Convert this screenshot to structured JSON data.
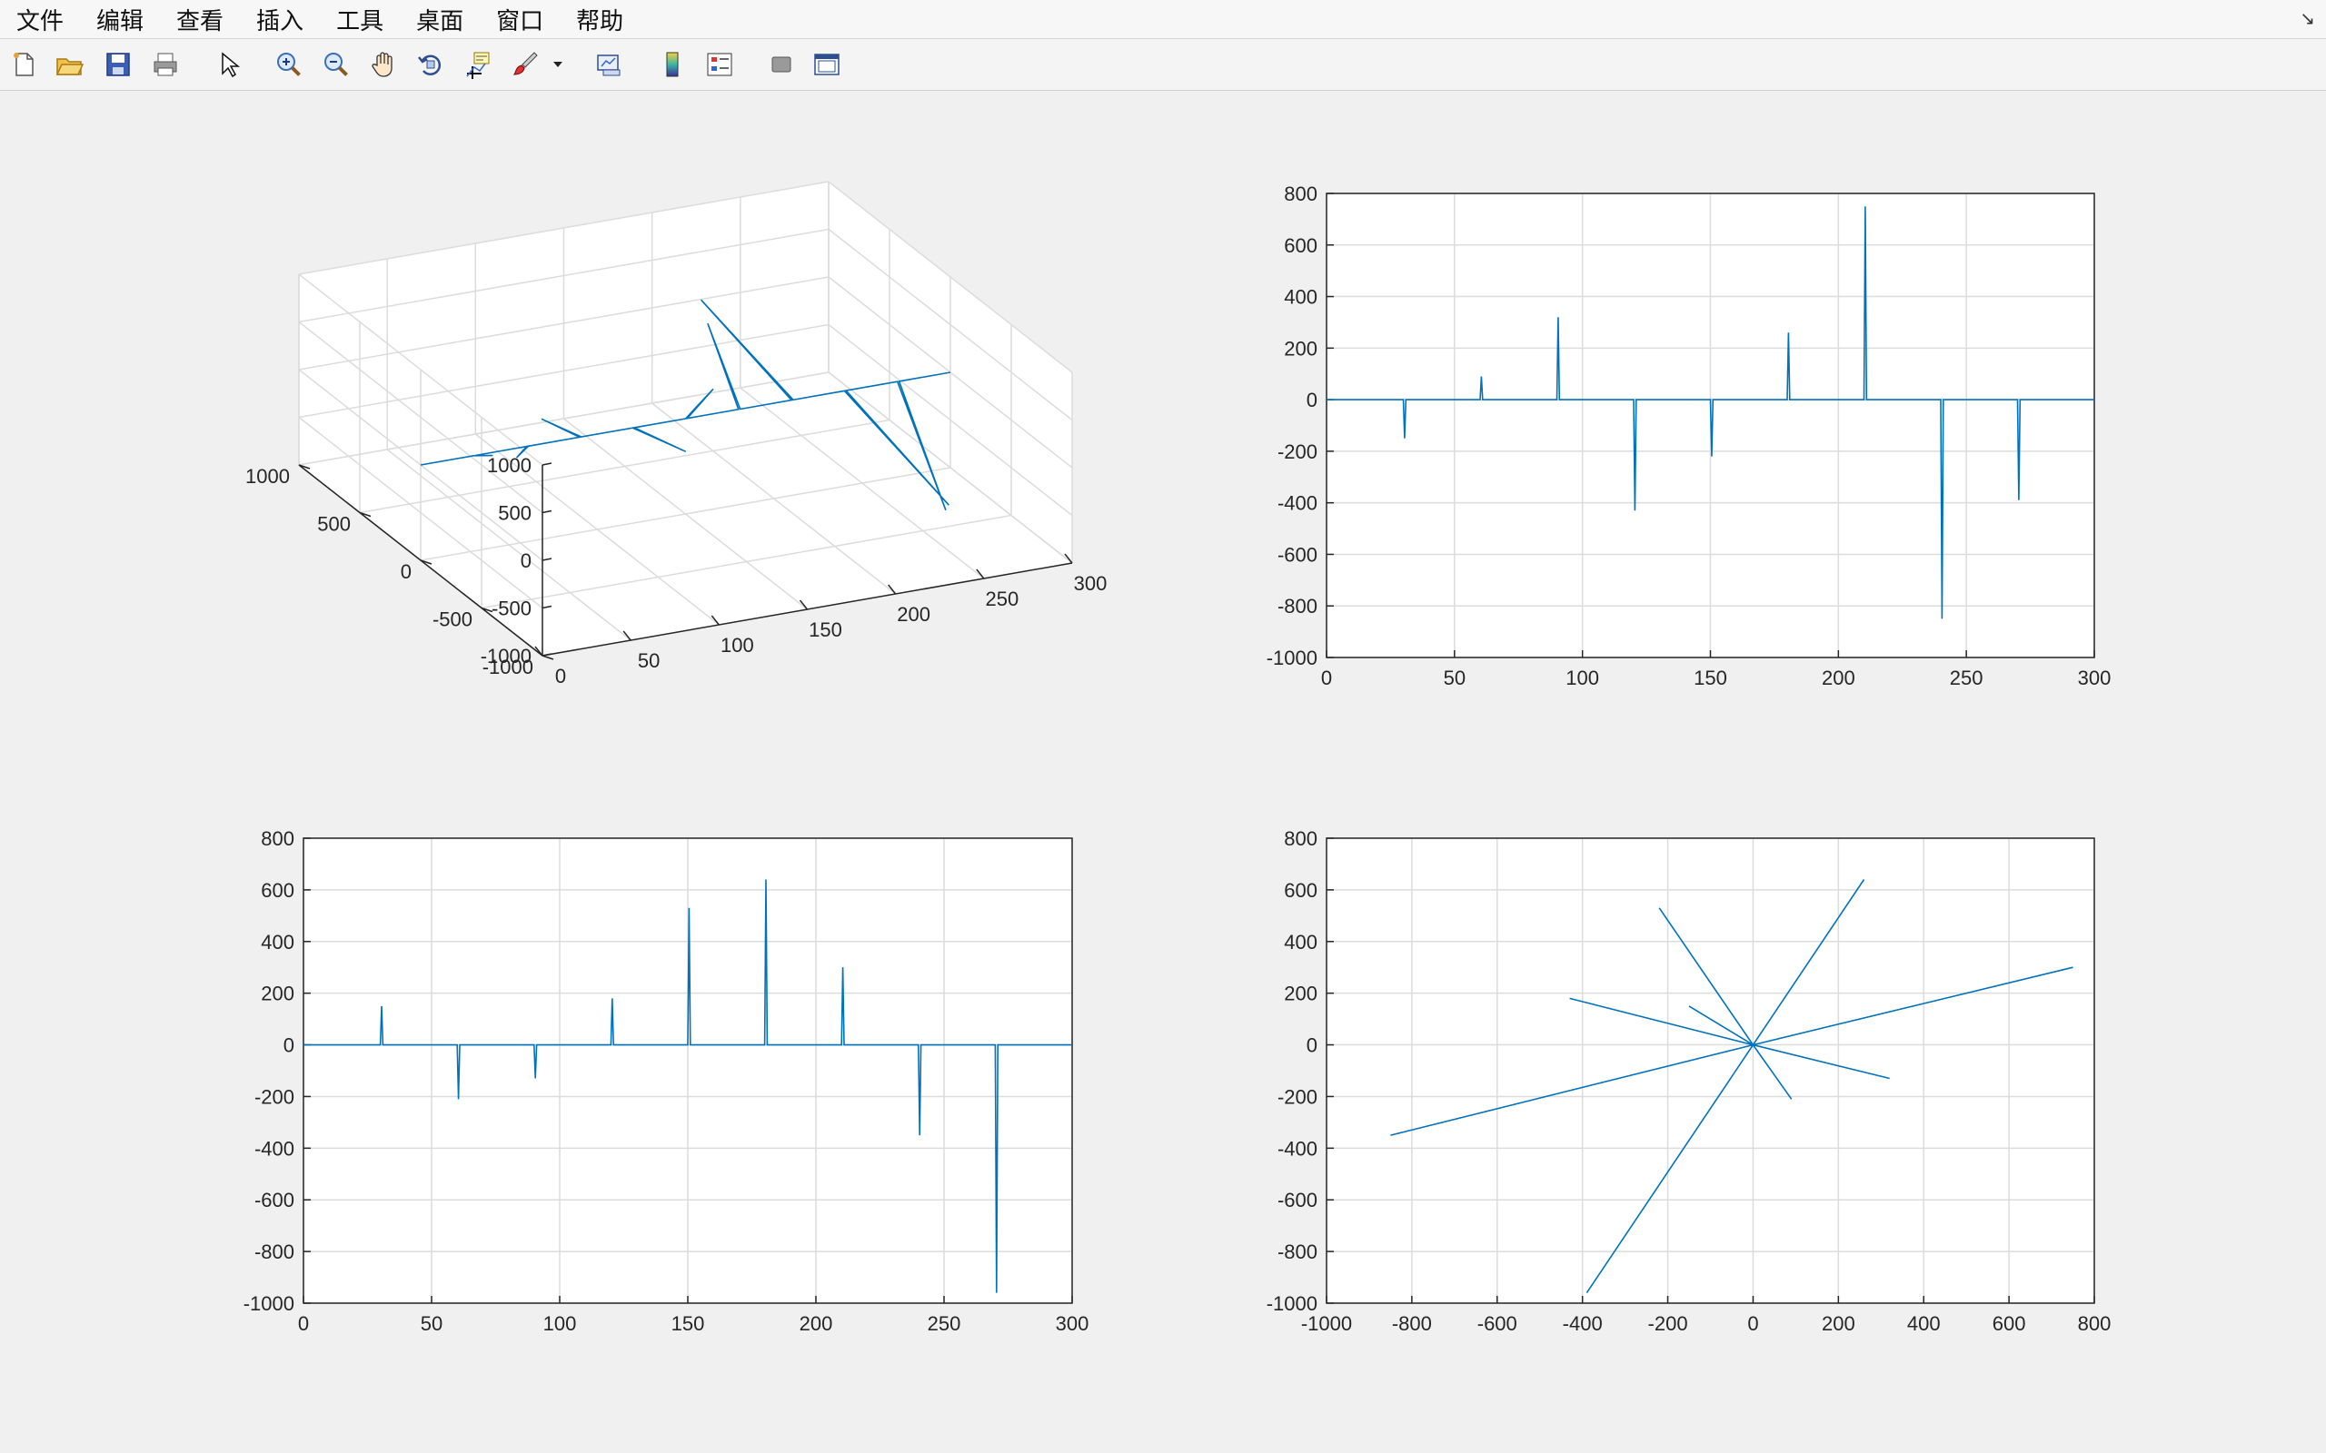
{
  "menubar": {
    "items": [
      "文件",
      "编辑",
      "查看",
      "插入",
      "工具",
      "桌面",
      "窗口",
      "帮助"
    ],
    "corner_glyph": "↘"
  },
  "toolbar": {
    "buttons": [
      {
        "name": "new-figure-icon"
      },
      {
        "name": "open-file-icon"
      },
      {
        "name": "save-icon"
      },
      {
        "name": "print-icon"
      },
      {
        "name": "pointer-icon"
      },
      {
        "name": "zoom-in-icon"
      },
      {
        "name": "zoom-out-icon"
      },
      {
        "name": "pan-hand-icon"
      },
      {
        "name": "rotate-3d-icon"
      },
      {
        "name": "data-cursor-icon"
      },
      {
        "name": "brush-icon"
      },
      {
        "name": "brush-dropdown-icon"
      },
      {
        "name": "link-plot-icon"
      },
      {
        "name": "colorbar-icon"
      },
      {
        "name": "legend-icon"
      },
      {
        "name": "hide-plot-tools-icon"
      },
      {
        "name": "show-plot-tools-icon"
      }
    ]
  },
  "colors": {
    "line": "#0072bd",
    "axis": "#262626",
    "grid": "#dcdcdc",
    "background": "#f0f0f0",
    "axes_background": "#ffffff"
  },
  "chart_data": [
    {
      "type": "line",
      "projection": "3d",
      "x": [
        0,
        30,
        30.5,
        31,
        60,
        60.5,
        61,
        90,
        90.5,
        91,
        120,
        120.5,
        121,
        150,
        150.5,
        151,
        180,
        180.5,
        181,
        210,
        210.5,
        211,
        240,
        240.5,
        241,
        270,
        270.5,
        271,
        300
      ],
      "y": [
        0,
        0,
        -150,
        0,
        0,
        90,
        0,
        0,
        320,
        0,
        0,
        -430,
        0,
        0,
        -220,
        0,
        0,
        260,
        0,
        0,
        750,
        0,
        0,
        -850,
        0,
        0,
        -390,
        0,
        0
      ],
      "z": [
        0,
        0,
        150,
        0,
        0,
        -210,
        0,
        0,
        -130,
        0,
        0,
        180,
        0,
        0,
        530,
        0,
        0,
        640,
        0,
        0,
        300,
        0,
        0,
        -350,
        0,
        0,
        -960,
        0,
        0
      ],
      "xticks": [
        "0",
        "50",
        "100",
        "150",
        "200",
        "250",
        "300"
      ],
      "yticks": [
        "-1000",
        "-500",
        "0",
        "500",
        "1000"
      ],
      "zticks": [
        "-1000",
        "-500",
        "0",
        "500",
        "1000"
      ],
      "xlim": [
        0,
        300
      ],
      "ylim": [
        -1000,
        1000
      ],
      "zlim": [
        -1000,
        1000
      ],
      "grid": true
    },
    {
      "type": "line",
      "x": [
        0,
        30,
        30.5,
        31,
        60,
        60.5,
        61,
        90,
        90.5,
        91,
        120,
        120.5,
        121,
        150,
        150.5,
        151,
        180,
        180.5,
        181,
        210,
        210.5,
        211,
        240,
        240.5,
        241,
        270,
        270.5,
        271,
        300
      ],
      "y": [
        0,
        0,
        -150,
        0,
        0,
        90,
        0,
        0,
        320,
        0,
        0,
        -430,
        0,
        0,
        -220,
        0,
        0,
        260,
        0,
        0,
        750,
        0,
        0,
        -850,
        0,
        0,
        -390,
        0,
        0
      ],
      "xticks": [
        "0",
        "50",
        "100",
        "150",
        "200",
        "250",
        "300"
      ],
      "yticks": [
        "-1000",
        "-800",
        "-600",
        "-400",
        "-200",
        "0",
        "200",
        "400",
        "600",
        "800"
      ],
      "xlim": [
        0,
        300
      ],
      "ylim": [
        -1000,
        800
      ],
      "grid": true
    },
    {
      "type": "line",
      "x": [
        0,
        30,
        30.5,
        31,
        60,
        60.5,
        61,
        90,
        90.5,
        91,
        120,
        120.5,
        121,
        150,
        150.5,
        151,
        180,
        180.5,
        181,
        210,
        210.5,
        211,
        240,
        240.5,
        241,
        270,
        270.5,
        271,
        300
      ],
      "y": [
        0,
        0,
        150,
        0,
        0,
        -210,
        0,
        0,
        -130,
        0,
        0,
        180,
        0,
        0,
        530,
        0,
        0,
        640,
        0,
        0,
        300,
        0,
        0,
        -350,
        0,
        0,
        -960,
        0,
        0
      ],
      "xticks": [
        "0",
        "50",
        "100",
        "150",
        "200",
        "250",
        "300"
      ],
      "yticks": [
        "-1000",
        "-800",
        "-600",
        "-400",
        "-200",
        "0",
        "200",
        "400",
        "600",
        "800"
      ],
      "xlim": [
        0,
        300
      ],
      "ylim": [
        -1000,
        800
      ],
      "grid": true
    },
    {
      "type": "line",
      "x": [
        0,
        -150,
        0,
        90,
        0,
        320,
        0,
        -430,
        0,
        -220,
        0,
        260,
        0,
        750,
        0,
        -850,
        0,
        -390,
        0
      ],
      "y": [
        0,
        150,
        0,
        -210,
        0,
        -130,
        0,
        180,
        0,
        530,
        0,
        640,
        0,
        300,
        0,
        -350,
        0,
        -960,
        0
      ],
      "xticks": [
        "-1000",
        "-800",
        "-600",
        "-400",
        "-200",
        "0",
        "200",
        "400",
        "600",
        "800"
      ],
      "yticks": [
        "-1000",
        "-800",
        "-600",
        "-400",
        "-200",
        "0",
        "200",
        "400",
        "600",
        "800"
      ],
      "xlim": [
        -1000,
        800
      ],
      "ylim": [
        -1000,
        800
      ],
      "grid": true
    }
  ]
}
